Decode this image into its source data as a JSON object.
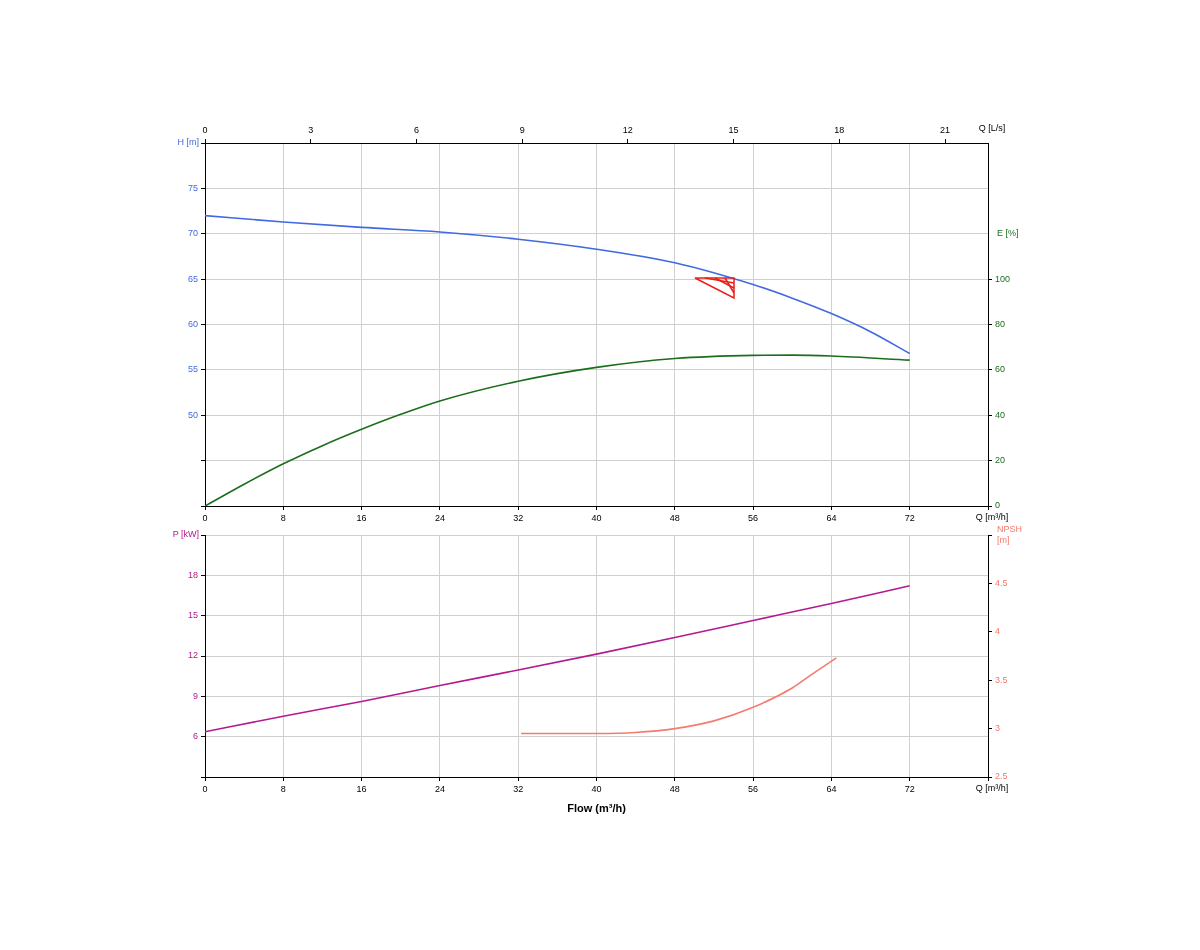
{
  "chart_data": [
    {
      "type": "line",
      "ylabel": "H [m]",
      "y2label": "E [%]",
      "xlabel": "Q [m³/h]",
      "x2label": "Q [L/s]",
      "grid": true,
      "xlim": [
        0,
        80
      ],
      "xticks": [
        0,
        8,
        16,
        24,
        32,
        40,
        48,
        56,
        64,
        72,
        {
          "value": 80,
          "label": null
        }
      ],
      "x2lim": [
        0,
        22.22
      ],
      "x2ticks": [
        0,
        3,
        6,
        9,
        12,
        15,
        18,
        21
      ],
      "ylim": [
        40,
        80
      ],
      "yticks": [
        {
          "value": 40,
          "label": null
        },
        {
          "value": 45,
          "label": null
        },
        50,
        55,
        60,
        65,
        70,
        75,
        {
          "value": 80,
          "label": null
        }
      ],
      "y2lim": [
        0,
        160
      ],
      "y2ticks": [
        0,
        20,
        40,
        60,
        80,
        100
      ],
      "series": [
        {
          "color": "#4169e1",
          "x": [
            0,
            8,
            16,
            24,
            32,
            40,
            48,
            56,
            60,
            64,
            68,
            72
          ],
          "values": [
            72.0,
            71.3,
            70.7,
            70.2,
            69.4,
            68.3,
            66.8,
            64.4,
            62.9,
            61.2,
            59.2,
            56.8
          ]
        },
        {
          "axis": "y2",
          "color": "#1b6e1b",
          "x": [
            0,
            4,
            8,
            12,
            16,
            20,
            24,
            32,
            40,
            48,
            56,
            60,
            64,
            72
          ],
          "values": [
            0,
            9.6,
            18.6,
            26.6,
            33.8,
            40.4,
            46.3,
            55.0,
            61.1,
            65.0,
            66.4,
            66.5,
            66.1,
            64.3
          ]
        }
      ]
    },
    {
      "type": "line",
      "ylabel": "P [kW]",
      "y2label": "NPSH [m]",
      "xlabel": "Q [m³/h]",
      "grid": true,
      "annotations": [
        "Flow (m³/h)"
      ],
      "xlim": [
        0,
        80
      ],
      "xticks": [
        0,
        8,
        16,
        24,
        32,
        40,
        48,
        56,
        64,
        72,
        {
          "value": 80,
          "label": null
        }
      ],
      "ylim": [
        3,
        21
      ],
      "yticks": [
        {
          "value": 3,
          "label": null
        },
        6,
        9,
        12,
        15,
        18,
        {
          "value": 21,
          "label": null
        }
      ],
      "y2lim": [
        2.5,
        5
      ],
      "y2ticks": [
        2.5,
        3,
        3.5,
        4,
        4.5,
        {
          "value": 5,
          "label": null
        }
      ],
      "series": [
        {
          "color": "#b5198f",
          "x": [
            0,
            8,
            16,
            24,
            32,
            40,
            48,
            56,
            64,
            72
          ],
          "values": [
            6.37,
            7.52,
            8.62,
            9.81,
            10.96,
            12.14,
            13.37,
            14.64,
            15.91,
            17.22
          ]
        },
        {
          "axis": "y2",
          "color": "#f47c6c",
          "x": [
            32.3,
            36,
            40,
            44,
            48,
            52,
            56,
            60,
            62,
            64.5
          ],
          "values": [
            2.95,
            2.95,
            2.95,
            2.96,
            3.0,
            3.08,
            3.22,
            3.42,
            3.56,
            3.73
          ]
        }
      ]
    }
  ]
}
